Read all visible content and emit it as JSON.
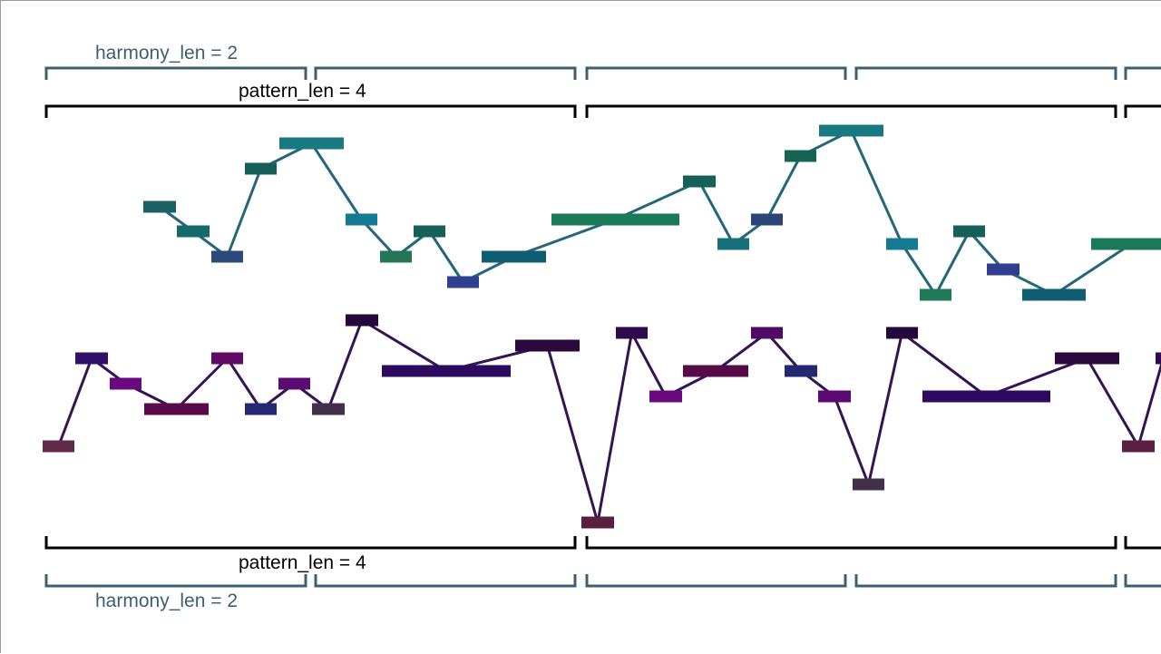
{
  "labels": {
    "harmony_top": "harmony_len = 2",
    "pattern_top": "pattern_len = 4",
    "pattern_bottom": "pattern_len = 4",
    "harmony_bottom": "harmony_len = 2"
  },
  "colors": {
    "harmony_bracket": "#3d6070",
    "pattern_bracket": "#000000",
    "melody_line": "#25667a",
    "bass_line": "#341452"
  },
  "melody_notes": [
    {
      "color": "#1d6064"
    },
    {
      "color": "#156a6c"
    },
    {
      "color": "#2b4a7a"
    },
    {
      "color": "#165f59"
    },
    {
      "color": "#187a80"
    },
    {
      "color": "#147a94"
    },
    {
      "color": "#257656"
    },
    {
      "color": "#166058"
    },
    {
      "color": "#2f3f90"
    },
    {
      "color": "#0f5d70"
    },
    {
      "color": "#1a7a58"
    },
    {
      "color": "#156058"
    },
    {
      "color": "#16707a"
    },
    {
      "color": "#2b4576"
    },
    {
      "color": "#156452"
    },
    {
      "color": "#187a80"
    },
    {
      "color": "#147a94"
    },
    {
      "color": "#207a58"
    },
    {
      "color": "#166058"
    },
    {
      "color": "#2f3f90"
    },
    {
      "color": "#0f5d70"
    },
    {
      "color": "#1a7a58"
    }
  ],
  "bass_notes": [
    {
      "color": "#612a48"
    },
    {
      "color": "#30106a"
    },
    {
      "color": "#6a0880"
    },
    {
      "color": "#5a0a48"
    },
    {
      "color": "#600a66"
    },
    {
      "color": "#232872"
    },
    {
      "color": "#5a0a70"
    },
    {
      "color": "#403048"
    },
    {
      "color": "#240a3c"
    },
    {
      "color": "#2c0a60"
    },
    {
      "color": "#2a0a3c"
    },
    {
      "color": "#5a2040"
    },
    {
      "color": "#2d0a4e"
    },
    {
      "color": "#6a0880"
    },
    {
      "color": "#560a48"
    },
    {
      "color": "#500a66"
    },
    {
      "color": "#232872"
    },
    {
      "color": "#5a0a70"
    },
    {
      "color": "#403048"
    },
    {
      "color": "#240a3c"
    },
    {
      "color": "#2c0a60"
    },
    {
      "color": "#2a0a3c"
    },
    {
      "color": "#5a2040"
    },
    {
      "color": "#300a50"
    }
  ]
}
